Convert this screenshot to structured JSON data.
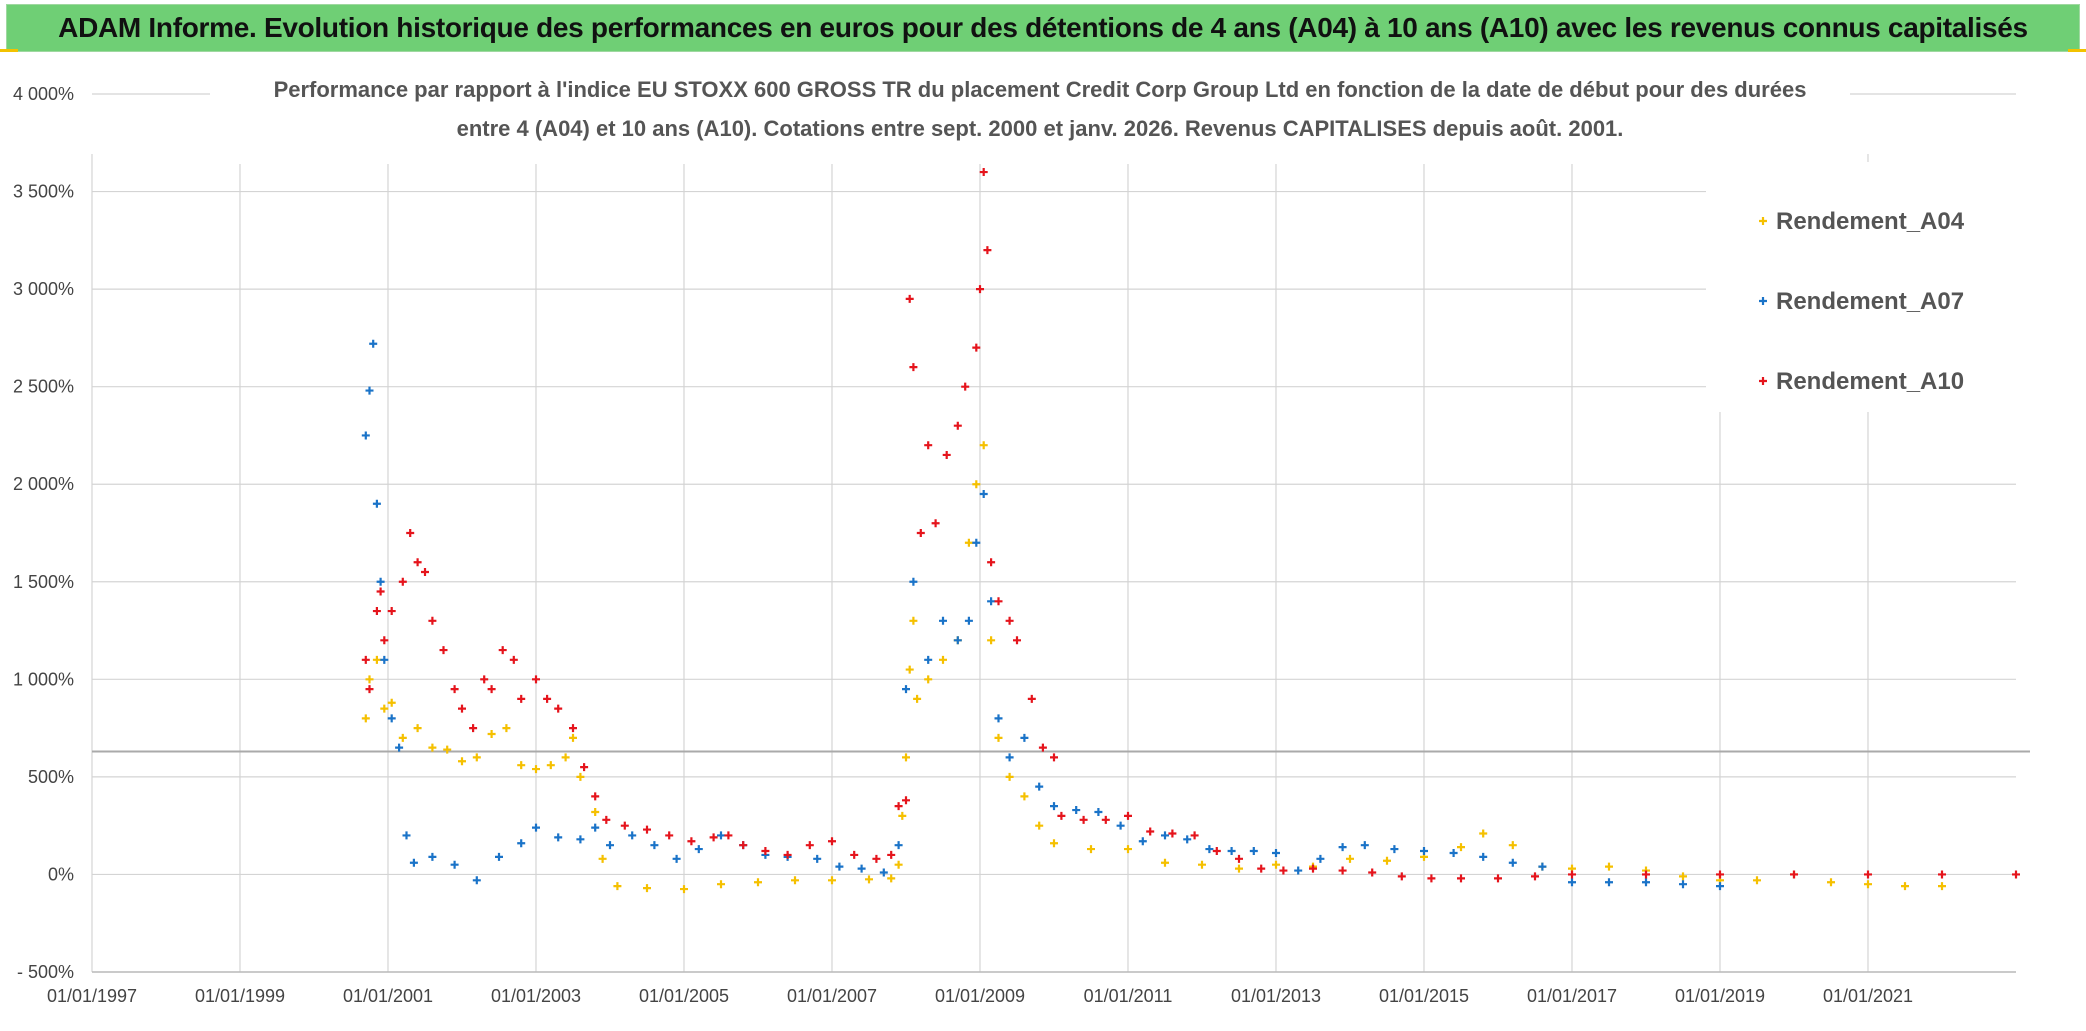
{
  "header": {
    "title": "ADAM Informe. Evolution historique des performances en euros pour des détentions de 4 ans (A04) à 10 ans (A10) avec les revenus connus capitalisés"
  },
  "colors": {
    "A04": "#f5c000",
    "A07": "#1a73c8",
    "A10": "#e5141c",
    "grid": "#d4d4d4",
    "refline": "#aaaaaa"
  },
  "chart_data": {
    "type": "scatter",
    "title_lines": [
      "Performance par rapport à l'indice EU STOXX 600 GROSS TR  du placement Credit Corp Group Ltd en fonction de la date de début pour des durées",
      "entre 4 (A04) et 10 ans (A10). Cotations entre sept. 2000 et janv. 2026. Revenus CAPITALISES depuis août. 2001."
    ],
    "xlabel": "",
    "ylabel": "",
    "x_domain": [
      1997.0,
      2023.0
    ],
    "ylim": [
      -500,
      4000
    ],
    "y_ticks": [
      -500,
      0,
      500,
      1000,
      1500,
      2000,
      2500,
      3000,
      3500,
      4000
    ],
    "y_tick_labels": [
      "- 500%",
      "0%",
      "500%",
      "1 000%",
      "1 500%",
      "2 000%",
      "2 500%",
      "3 000%",
      "3 500%",
      "4 000%"
    ],
    "x_ticks": [
      1997,
      1999,
      2001,
      2003,
      2005,
      2007,
      2009,
      2011,
      2013,
      2015,
      2017,
      2019,
      2021
    ],
    "x_tick_labels": [
      "01/01/1997",
      "01/01/1999",
      "01/01/2001",
      "01/01/2003",
      "01/01/2005",
      "01/01/2007",
      "01/01/2009",
      "01/01/2011",
      "01/01/2013",
      "01/01/2015",
      "01/01/2017",
      "01/01/2019",
      "01/01/2021"
    ],
    "reference_line_y": 630,
    "legend": {
      "position": "top-right",
      "entries": [
        "Rendement_A04",
        "Rendement_A07",
        "Rendement_A10"
      ]
    },
    "series": [
      {
        "name": "Rendement_A04",
        "color_key": "A04",
        "points": [
          [
            2000.7,
            800
          ],
          [
            2000.75,
            1000
          ],
          [
            2000.85,
            1100
          ],
          [
            2000.95,
            850
          ],
          [
            2001.05,
            880
          ],
          [
            2001.2,
            700
          ],
          [
            2001.4,
            750
          ],
          [
            2001.6,
            650
          ],
          [
            2001.8,
            640
          ],
          [
            2002.0,
            580
          ],
          [
            2002.2,
            600
          ],
          [
            2002.4,
            720
          ],
          [
            2002.6,
            750
          ],
          [
            2002.8,
            560
          ],
          [
            2003.0,
            540
          ],
          [
            2003.2,
            560
          ],
          [
            2003.4,
            600
          ],
          [
            2003.5,
            700
          ],
          [
            2003.6,
            500
          ],
          [
            2003.8,
            320
          ],
          [
            2003.9,
            80
          ],
          [
            2004.1,
            -60
          ],
          [
            2004.5,
            -70
          ],
          [
            2005.0,
            -75
          ],
          [
            2005.5,
            -50
          ],
          [
            2006.0,
            -40
          ],
          [
            2006.5,
            -30
          ],
          [
            2007.0,
            -30
          ],
          [
            2007.5,
            -25
          ],
          [
            2007.8,
            -20
          ],
          [
            2007.9,
            50
          ],
          [
            2007.95,
            300
          ],
          [
            2008.0,
            600
          ],
          [
            2008.05,
            1050
          ],
          [
            2008.1,
            1300
          ],
          [
            2008.15,
            900
          ],
          [
            2008.3,
            1000
          ],
          [
            2008.5,
            1100
          ],
          [
            2008.7,
            1200
          ],
          [
            2008.85,
            1700
          ],
          [
            2008.95,
            2000
          ],
          [
            2009.05,
            2200
          ],
          [
            2009.15,
            1200
          ],
          [
            2009.25,
            700
          ],
          [
            2009.4,
            500
          ],
          [
            2009.6,
            400
          ],
          [
            2009.8,
            250
          ],
          [
            2010.0,
            160
          ],
          [
            2010.5,
            130
          ],
          [
            2011.0,
            130
          ],
          [
            2011.5,
            60
          ],
          [
            2012.0,
            50
          ],
          [
            2012.5,
            30
          ],
          [
            2013.0,
            50
          ],
          [
            2013.5,
            40
          ],
          [
            2014.0,
            80
          ],
          [
            2014.5,
            70
          ],
          [
            2015.0,
            90
          ],
          [
            2015.5,
            140
          ],
          [
            2015.8,
            210
          ],
          [
            2016.2,
            150
          ],
          [
            2016.6,
            40
          ],
          [
            2017.0,
            30
          ],
          [
            2017.5,
            40
          ],
          [
            2018.0,
            20
          ],
          [
            2018.5,
            -10
          ],
          [
            2019.0,
            -30
          ],
          [
            2019.5,
            -30
          ],
          [
            2020.0,
            0
          ],
          [
            2020.5,
            -40
          ],
          [
            2021.0,
            -50
          ],
          [
            2021.5,
            -60
          ],
          [
            2022.0,
            -60
          ]
        ]
      },
      {
        "name": "Rendement_A07",
        "color_key": "A07",
        "points": [
          [
            2000.7,
            2250
          ],
          [
            2000.75,
            2480
          ],
          [
            2000.8,
            2720
          ],
          [
            2000.85,
            1900
          ],
          [
            2000.9,
            1500
          ],
          [
            2000.95,
            1100
          ],
          [
            2001.05,
            800
          ],
          [
            2001.15,
            650
          ],
          [
            2001.25,
            200
          ],
          [
            2001.35,
            60
          ],
          [
            2001.6,
            90
          ],
          [
            2001.9,
            50
          ],
          [
            2002.2,
            -30
          ],
          [
            2002.5,
            90
          ],
          [
            2002.8,
            160
          ],
          [
            2003.0,
            240
          ],
          [
            2003.3,
            190
          ],
          [
            2003.6,
            180
          ],
          [
            2003.8,
            240
          ],
          [
            2004.0,
            150
          ],
          [
            2004.3,
            200
          ],
          [
            2004.6,
            150
          ],
          [
            2004.9,
            80
          ],
          [
            2005.2,
            130
          ],
          [
            2005.5,
            200
          ],
          [
            2005.8,
            150
          ],
          [
            2006.1,
            100
          ],
          [
            2006.4,
            90
          ],
          [
            2006.8,
            80
          ],
          [
            2007.1,
            40
          ],
          [
            2007.4,
            30
          ],
          [
            2007.7,
            10
          ],
          [
            2007.9,
            150
          ],
          [
            2008.0,
            950
          ],
          [
            2008.1,
            1500
          ],
          [
            2008.3,
            1100
          ],
          [
            2008.5,
            1300
          ],
          [
            2008.7,
            1200
          ],
          [
            2008.85,
            1300
          ],
          [
            2008.95,
            1700
          ],
          [
            2009.05,
            1950
          ],
          [
            2009.15,
            1400
          ],
          [
            2009.25,
            800
          ],
          [
            2009.4,
            600
          ],
          [
            2009.6,
            700
          ],
          [
            2009.8,
            450
          ],
          [
            2010.0,
            350
          ],
          [
            2010.3,
            330
          ],
          [
            2010.6,
            320
          ],
          [
            2010.9,
            250
          ],
          [
            2011.2,
            170
          ],
          [
            2011.5,
            200
          ],
          [
            2011.8,
            180
          ],
          [
            2012.1,
            130
          ],
          [
            2012.4,
            120
          ],
          [
            2012.7,
            120
          ],
          [
            2013.0,
            110
          ],
          [
            2013.3,
            20
          ],
          [
            2013.6,
            80
          ],
          [
            2013.9,
            140
          ],
          [
            2014.2,
            150
          ],
          [
            2014.6,
            130
          ],
          [
            2015.0,
            120
          ],
          [
            2015.4,
            110
          ],
          [
            2015.8,
            90
          ],
          [
            2016.2,
            60
          ],
          [
            2016.6,
            40
          ],
          [
            2017.0,
            -40
          ],
          [
            2017.5,
            -40
          ],
          [
            2018.0,
            -40
          ],
          [
            2018.5,
            -50
          ],
          [
            2019.0,
            -60
          ]
        ]
      },
      {
        "name": "Rendement_A10",
        "color_key": "A10",
        "points": [
          [
            2000.7,
            1100
          ],
          [
            2000.75,
            950
          ],
          [
            2000.85,
            1350
          ],
          [
            2000.9,
            1450
          ],
          [
            2000.95,
            1200
          ],
          [
            2001.05,
            1350
          ],
          [
            2001.2,
            1500
          ],
          [
            2001.3,
            1750
          ],
          [
            2001.4,
            1600
          ],
          [
            2001.5,
            1550
          ],
          [
            2001.6,
            1300
          ],
          [
            2001.75,
            1150
          ],
          [
            2001.9,
            950
          ],
          [
            2002.0,
            850
          ],
          [
            2002.15,
            750
          ],
          [
            2002.3,
            1000
          ],
          [
            2002.4,
            950
          ],
          [
            2002.55,
            1150
          ],
          [
            2002.7,
            1100
          ],
          [
            2002.8,
            900
          ],
          [
            2003.0,
            1000
          ],
          [
            2003.15,
            900
          ],
          [
            2003.3,
            850
          ],
          [
            2003.5,
            750
          ],
          [
            2003.65,
            550
          ],
          [
            2003.8,
            400
          ],
          [
            2003.95,
            280
          ],
          [
            2004.2,
            250
          ],
          [
            2004.5,
            230
          ],
          [
            2004.8,
            200
          ],
          [
            2005.1,
            170
          ],
          [
            2005.4,
            190
          ],
          [
            2005.6,
            200
          ],
          [
            2005.8,
            150
          ],
          [
            2006.1,
            120
          ],
          [
            2006.4,
            100
          ],
          [
            2006.7,
            150
          ],
          [
            2007.0,
            170
          ],
          [
            2007.3,
            100
          ],
          [
            2007.6,
            80
          ],
          [
            2007.8,
            100
          ],
          [
            2007.9,
            350
          ],
          [
            2008.0,
            380
          ],
          [
            2008.05,
            2950
          ],
          [
            2008.1,
            2600
          ],
          [
            2008.2,
            1750
          ],
          [
            2008.3,
            2200
          ],
          [
            2008.4,
            1800
          ],
          [
            2008.55,
            2150
          ],
          [
            2008.7,
            2300
          ],
          [
            2008.8,
            2500
          ],
          [
            2008.95,
            2700
          ],
          [
            2009.0,
            3000
          ],
          [
            2009.05,
            3600
          ],
          [
            2009.1,
            3200
          ],
          [
            2009.15,
            1600
          ],
          [
            2009.25,
            1400
          ],
          [
            2009.4,
            1300
          ],
          [
            2009.5,
            1200
          ],
          [
            2009.7,
            900
          ],
          [
            2009.85,
            650
          ],
          [
            2010.0,
            600
          ],
          [
            2010.1,
            300
          ],
          [
            2010.4,
            280
          ],
          [
            2010.7,
            280
          ],
          [
            2011.0,
            300
          ],
          [
            2011.3,
            220
          ],
          [
            2011.6,
            210
          ],
          [
            2011.9,
            200
          ],
          [
            2012.2,
            120
          ],
          [
            2012.5,
            80
          ],
          [
            2012.8,
            30
          ],
          [
            2013.1,
            20
          ],
          [
            2013.5,
            30
          ],
          [
            2013.9,
            20
          ],
          [
            2014.3,
            10
          ],
          [
            2014.7,
            -10
          ],
          [
            2015.1,
            -20
          ],
          [
            2015.5,
            -20
          ],
          [
            2016.0,
            -20
          ],
          [
            2016.5,
            -10
          ],
          [
            2017.0,
            0
          ],
          [
            2018.0,
            0
          ],
          [
            2019.0,
            0
          ],
          [
            2020.0,
            0
          ],
          [
            2021.0,
            0
          ],
          [
            2022.0,
            0
          ],
          [
            2023.0,
            0
          ]
        ]
      }
    ]
  }
}
